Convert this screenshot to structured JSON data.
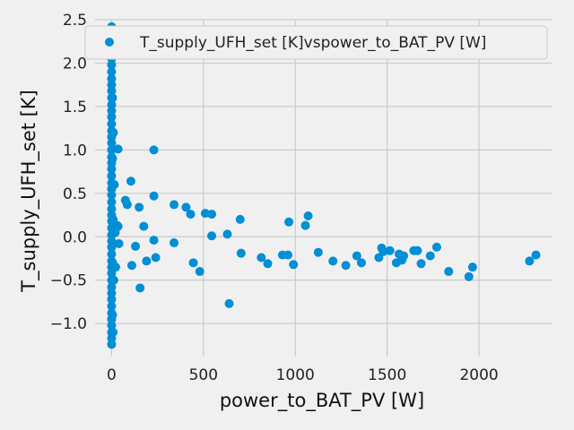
{
  "chart_data": {
    "type": "scatter",
    "xlabel": "power_to_BAT_PV [W]",
    "ylabel": "T_supply_UFH_set [K]",
    "xlim": [
      -90,
      2400
    ],
    "ylim": [
      -1.38,
      2.5
    ],
    "xticks": [
      0,
      500,
      1000,
      1500,
      2000
    ],
    "yticks": [
      -1.0,
      -0.5,
      0.0,
      0.5,
      1.0,
      1.5,
      2.0,
      2.5
    ],
    "xtick_labels": [
      "0",
      "500",
      "1000",
      "1500",
      "2000"
    ],
    "ytick_labels": [
      "−1.0",
      "−0.5",
      "0.0",
      "0.5",
      "1.0",
      "1.5",
      "2.0",
      "2.5"
    ],
    "grid": true,
    "legend_position": "top-right",
    "color": "#008fd5",
    "series": [
      {
        "name": "T_supply_UFH_set [K]vspower_to_BAT_PV [W]",
        "points": [
          [
            0,
            2.42
          ],
          [
            0,
            2.35
          ],
          [
            0,
            2.28
          ],
          [
            0,
            2.2
          ],
          [
            0,
            2.12
          ],
          [
            0,
            2.05
          ],
          [
            0,
            1.98
          ],
          [
            0,
            1.9
          ],
          [
            0,
            1.82
          ],
          [
            0,
            1.75
          ],
          [
            0,
            1.68
          ],
          [
            0,
            1.6
          ],
          [
            0,
            1.52
          ],
          [
            0,
            1.45
          ],
          [
            0,
            1.38
          ],
          [
            0,
            1.3
          ],
          [
            0,
            1.22
          ],
          [
            0,
            1.15
          ],
          [
            0,
            1.08
          ],
          [
            0,
            1.0
          ],
          [
            0,
            0.92
          ],
          [
            0,
            0.85
          ],
          [
            0,
            0.78
          ],
          [
            0,
            0.7
          ],
          [
            0,
            0.62
          ],
          [
            0,
            0.55
          ],
          [
            0,
            0.48
          ],
          [
            0,
            0.4
          ],
          [
            0,
            0.32
          ],
          [
            0,
            0.25
          ],
          [
            0,
            0.18
          ],
          [
            0,
            0.1
          ],
          [
            0,
            0.02
          ],
          [
            0,
            -0.05
          ],
          [
            0,
            -0.12
          ],
          [
            0,
            -0.2
          ],
          [
            0,
            -0.28
          ],
          [
            0,
            -0.35
          ],
          [
            0,
            -0.42
          ],
          [
            0,
            -0.5
          ],
          [
            0,
            -0.58
          ],
          [
            0,
            -0.65
          ],
          [
            0,
            -0.72
          ],
          [
            0,
            -0.8
          ],
          [
            0,
            -0.88
          ],
          [
            0,
            -0.95
          ],
          [
            0,
            -1.02
          ],
          [
            0,
            -1.1
          ],
          [
            0,
            -1.17
          ],
          [
            0,
            -1.24
          ],
          [
            5,
            2.3
          ],
          [
            5,
            1.6
          ],
          [
            5,
            0.9
          ],
          [
            5,
            -0.3
          ],
          [
            5,
            -0.9
          ],
          [
            8,
            0.2
          ],
          [
            8,
            -1.1
          ],
          [
            10,
            1.2
          ],
          [
            12,
            -0.5
          ],
          [
            15,
            0.6
          ],
          [
            20,
            0.05
          ],
          [
            22,
            -0.35
          ],
          [
            35,
            1.01
          ],
          [
            30,
            0.13
          ],
          [
            40,
            -0.08
          ],
          [
            35,
            0.12
          ],
          [
            75,
            0.42
          ],
          [
            85,
            0.37
          ],
          [
            105,
            0.64
          ],
          [
            110,
            -0.33
          ],
          [
            130,
            -0.11
          ],
          [
            150,
            0.34
          ],
          [
            155,
            -0.59
          ],
          [
            175,
            0.12
          ],
          [
            190,
            -0.28
          ],
          [
            230,
            1.0
          ],
          [
            230,
            0.47
          ],
          [
            230,
            -0.04
          ],
          [
            240,
            -0.24
          ],
          [
            340,
            0.37
          ],
          [
            340,
            -0.07
          ],
          [
            405,
            0.34
          ],
          [
            430,
            0.26
          ],
          [
            445,
            -0.3
          ],
          [
            480,
            -0.4
          ],
          [
            510,
            0.27
          ],
          [
            545,
            0.26
          ],
          [
            545,
            0.01
          ],
          [
            630,
            0.03
          ],
          [
            640,
            -0.77
          ],
          [
            700,
            0.2
          ],
          [
            705,
            -0.19
          ],
          [
            815,
            -0.24
          ],
          [
            850,
            -0.31
          ],
          [
            930,
            -0.21
          ],
          [
            960,
            -0.21
          ],
          [
            965,
            0.17
          ],
          [
            990,
            -0.32
          ],
          [
            1055,
            0.13
          ],
          [
            1070,
            0.24
          ],
          [
            1125,
            -0.18
          ],
          [
            1205,
            -0.28
          ],
          [
            1275,
            -0.33
          ],
          [
            1335,
            -0.22
          ],
          [
            1360,
            -0.3
          ],
          [
            1455,
            -0.24
          ],
          [
            1470,
            -0.13
          ],
          [
            1480,
            -0.17
          ],
          [
            1515,
            -0.16
          ],
          [
            1550,
            -0.3
          ],
          [
            1565,
            -0.2
          ],
          [
            1580,
            -0.27
          ],
          [
            1590,
            -0.22
          ],
          [
            1645,
            -0.16
          ],
          [
            1665,
            -0.16
          ],
          [
            1685,
            -0.31
          ],
          [
            1735,
            -0.22
          ],
          [
            1770,
            -0.12
          ],
          [
            1835,
            -0.4
          ],
          [
            1945,
            -0.46
          ],
          [
            1965,
            -0.35
          ],
          [
            2275,
            -0.28
          ],
          [
            2310,
            -0.21
          ]
        ]
      }
    ]
  }
}
